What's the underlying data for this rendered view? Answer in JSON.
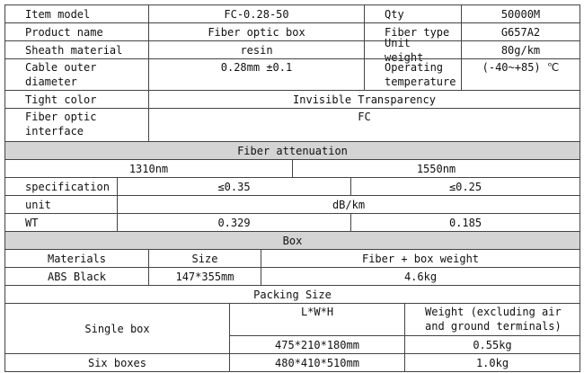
{
  "table": {
    "rows": [
      [
        "Item model",
        "FC-0.28-50",
        "Qty",
        "50000M"
      ],
      [
        "Product name",
        "Fiber optic box",
        "Fiber type",
        "G657A2"
      ],
      [
        "Sheath material",
        "resin",
        "Unit weight",
        "80g/km"
      ],
      [
        "Cable outer diameter",
        "0.28mm ±0.1",
        "Operating temperature",
        "(-40~+85) ℃"
      ],
      [
        "Tight color",
        "Invisible Transparency"
      ],
      [
        "Fiber optic interface",
        "FC"
      ],
      [
        "Fiber attenuation"
      ],
      [
        "1310nm",
        "1550nm"
      ],
      [
        "specification",
        "≤0.35",
        "≤0.25"
      ],
      [
        "unit",
        "dB/km"
      ],
      [
        "WT",
        "0.329",
        "0.185"
      ],
      [
        "Box"
      ],
      [
        "Materials",
        "Size",
        "Fiber + box weight"
      ],
      [
        "ABS Black",
        "147*355mm",
        "4.6kg"
      ],
      [
        "Packing Size"
      ],
      [
        "Single box",
        "L*W*H",
        "Weight (excluding air and ground terminals)"
      ],
      [
        "475*210*180mm",
        "0.55kg"
      ],
      [
        "Six boxes",
        "480*410*510mm",
        "1.0kg"
      ]
    ]
  }
}
